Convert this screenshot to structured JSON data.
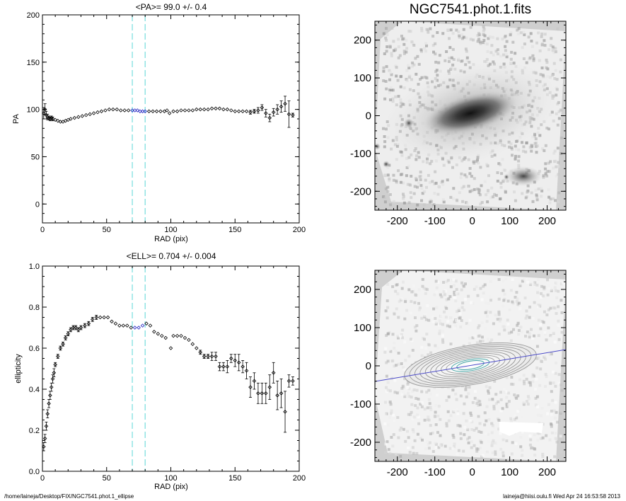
{
  "chart_data": [
    {
      "type": "scatter",
      "title": "<PA>=  99.0 +/-   0.4",
      "xlabel": "RAD (pix)",
      "ylabel": "PA",
      "xlim": [
        0,
        200
      ],
      "ylim": [
        -20,
        200
      ],
      "xticks": [
        0,
        50,
        100,
        150,
        200
      ],
      "yticks": [
        0,
        50,
        100,
        150,
        200
      ],
      "vlines": [
        70,
        80
      ],
      "highlight_range": [
        70,
        80
      ],
      "error_bars": true,
      "series": [
        {
          "x": [
            1,
            2,
            3,
            4,
            5,
            6,
            7,
            8,
            10,
            12,
            14,
            16,
            18,
            20,
            22,
            25,
            28,
            31,
            34,
            37,
            40,
            43,
            46,
            49,
            52,
            55,
            58,
            61,
            64,
            67,
            70,
            72,
            74,
            76,
            78,
            80,
            83,
            86,
            89,
            92,
            95,
            97,
            99,
            102,
            105,
            108,
            111,
            114,
            117,
            120,
            123,
            126,
            129,
            132,
            135,
            138,
            141,
            144,
            147,
            150,
            153,
            156,
            159,
            162,
            165,
            168,
            171,
            174,
            177,
            180,
            183,
            186,
            189,
            192,
            195
          ],
          "y": [
            96,
            100,
            94,
            92,
            91,
            90,
            91,
            90,
            89,
            88,
            87,
            87,
            88,
            89,
            90,
            91,
            92,
            93,
            94,
            95,
            96,
            97,
            98,
            99,
            100,
            100,
            100,
            99,
            99,
            99,
            99,
            99,
            99,
            98,
            98,
            98,
            98,
            98,
            98,
            98,
            98,
            99,
            96,
            98,
            98,
            99,
            99,
            99,
            99,
            100,
            100,
            100,
            100,
            101,
            101,
            101,
            100,
            100,
            99,
            98,
            98,
            98,
            98,
            97,
            98,
            99,
            102,
            96,
            91,
            97,
            100,
            103,
            106,
            95,
            94
          ],
          "yerr": [
            6,
            6,
            4,
            3,
            2,
            2,
            2,
            2,
            1,
            1,
            1,
            1,
            1,
            1,
            1,
            1,
            1,
            1,
            1,
            1,
            1,
            1,
            1,
            1,
            1,
            1,
            1,
            1,
            1,
            1,
            1,
            1,
            1,
            1,
            1,
            1,
            1,
            1,
            1,
            1,
            1,
            1,
            1,
            1,
            1,
            1,
            1,
            1,
            1,
            1,
            1,
            1,
            1,
            1,
            1,
            1,
            1,
            1,
            1,
            1,
            1,
            1,
            1,
            2,
            2,
            3,
            3,
            4,
            4,
            4,
            5,
            6,
            8,
            14,
            2
          ]
        }
      ]
    },
    {
      "type": "heatmap",
      "title": "NGC7541.phot.1.fits",
      "xlim": [
        -260,
        250
      ],
      "ylim": [
        -250,
        250
      ],
      "xticks": [
        -200,
        -100,
        0,
        100,
        200
      ],
      "yticks": [
        -200,
        -100,
        0,
        100,
        200
      ]
    },
    {
      "type": "scatter",
      "title": "<ELL>= 0.704 +/-  0.004",
      "xlabel": "RAD (pix)",
      "ylabel": "ellipticity",
      "xlim": [
        0,
        200
      ],
      "ylim": [
        0,
        1
      ],
      "xticks": [
        0,
        50,
        100,
        150,
        200
      ],
      "yticks": [
        "0.0",
        "0.2",
        "0.4",
        "0.6",
        "0.8",
        "1.0"
      ],
      "vlines": [
        70,
        80
      ],
      "highlight_range": [
        70,
        80
      ],
      "error_bars": true,
      "series": [
        {
          "x": [
            1,
            2,
            3,
            4,
            5,
            6,
            7,
            8,
            9,
            10,
            12,
            14,
            16,
            18,
            20,
            22,
            24,
            26,
            28,
            30,
            33,
            36,
            39,
            42,
            45,
            48,
            51,
            54,
            57,
            60,
            63,
            66,
            69,
            72,
            75,
            78,
            81,
            84,
            87,
            90,
            93,
            96,
            100,
            102,
            105,
            108,
            111,
            114,
            117,
            120,
            123,
            126,
            129,
            132,
            135,
            138,
            141,
            144,
            147,
            150,
            153,
            156,
            159,
            162,
            165,
            168,
            171,
            174,
            177,
            180,
            183,
            186,
            189,
            192,
            195
          ],
          "y": [
            0.12,
            0.16,
            0.22,
            0.28,
            0.33,
            0.37,
            0.41,
            0.45,
            0.48,
            0.52,
            0.56,
            0.6,
            0.62,
            0.65,
            0.67,
            0.69,
            0.7,
            0.7,
            0.69,
            0.7,
            0.71,
            0.72,
            0.74,
            0.75,
            0.75,
            0.75,
            0.75,
            0.73,
            0.72,
            0.71,
            0.71,
            0.71,
            0.7,
            0.7,
            0.7,
            0.71,
            0.72,
            0.71,
            0.68,
            0.67,
            0.66,
            0.65,
            0.6,
            0.66,
            0.66,
            0.66,
            0.65,
            0.64,
            0.62,
            0.6,
            0.58,
            0.56,
            0.56,
            0.56,
            0.56,
            0.51,
            0.51,
            0.51,
            0.55,
            0.54,
            0.53,
            0.51,
            0.49,
            0.41,
            0.44,
            0.38,
            0.38,
            0.38,
            0.41,
            0.48,
            0.37,
            0.38,
            0.29,
            0.44,
            0.44
          ],
          "yerr": [
            0.02,
            0.02,
            0.02,
            0.02,
            0.02,
            0.02,
            0.02,
            0.02,
            0.02,
            0.01,
            0.01,
            0.01,
            0.01,
            0.01,
            0.01,
            0.01,
            0.01,
            0.01,
            0.01,
            0.01,
            0.01,
            0.01,
            0.01,
            0.01,
            0.005,
            0.005,
            0.005,
            0.005,
            0.005,
            0.005,
            0.005,
            0.005,
            0.005,
            0.005,
            0.005,
            0.005,
            0.005,
            0.005,
            0.005,
            0.005,
            0.005,
            0.005,
            0.005,
            0.005,
            0.005,
            0.005,
            0.005,
            0.005,
            0.005,
            0.005,
            0.01,
            0.01,
            0.01,
            0.02,
            0.02,
            0.02,
            0.02,
            0.03,
            0.02,
            0.03,
            0.04,
            0.03,
            0.04,
            0.05,
            0.04,
            0.05,
            0.05,
            0.05,
            0.06,
            0.05,
            0.07,
            0.07,
            0.1,
            0.03,
            0.02
          ]
        }
      ]
    },
    {
      "type": "heatmap",
      "xlim": [
        -260,
        250
      ],
      "ylim": [
        -250,
        250
      ],
      "xticks": [
        -200,
        -100,
        0,
        100,
        200
      ],
      "yticks": [
        -200,
        -100,
        0,
        100,
        200
      ],
      "overlay": "isophote ellipses with major-axis line"
    }
  ],
  "footer": {
    "path": "/home/laineja/Desktop/FIX/NGC7541.phot.1_ellipse",
    "stamp": "laineja@hiisi.oulu.fi  Wed Apr 24 16:53:58 2013"
  },
  "colors": {
    "axes": "#000000",
    "vline": "#7fe0e0",
    "highlight": "#2020c0",
    "image_bg": "#cfcfcf",
    "major_axis_line": "#4a4ac8",
    "inner_contour": "#3aa0a0"
  }
}
